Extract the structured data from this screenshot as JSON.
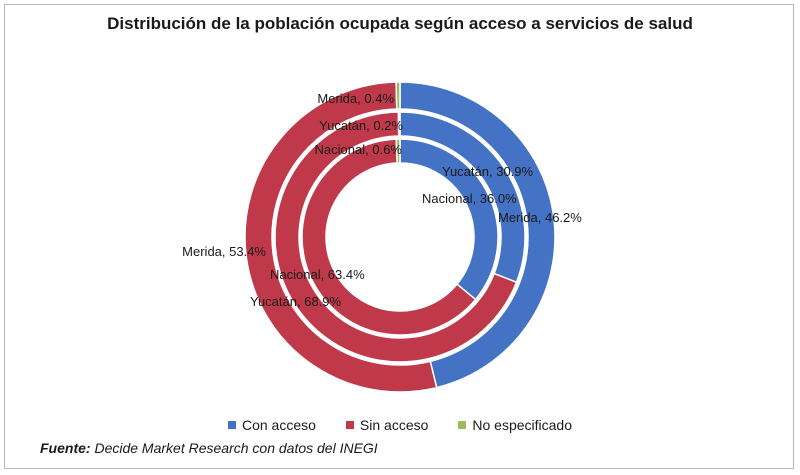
{
  "chart_data": {
    "type": "pie",
    "variant": "multi-ring doughnut",
    "title": "Distribución de la población ocupada según acceso a servicios de salud",
    "categories": [
      "Con acceso",
      "Sin acceso",
      "No especificado"
    ],
    "colors": [
      "#4472c4",
      "#c0394a",
      "#9bbb59"
    ],
    "series": [
      {
        "name": "Merida",
        "label": "Merida",
        "values": [
          46.2,
          53.4,
          0.4
        ]
      },
      {
        "name": "Yucatán",
        "label": "Yucatán",
        "values": [
          30.9,
          68.9,
          0.2
        ]
      },
      {
        "name": "Nacional",
        "label": "Nacional",
        "values": [
          36.0,
          63.4,
          0.6
        ]
      }
    ],
    "legend_position": "bottom"
  },
  "source": {
    "prefix": "Fuente:",
    "text": "Decide Market Research con datos del INEGI"
  }
}
